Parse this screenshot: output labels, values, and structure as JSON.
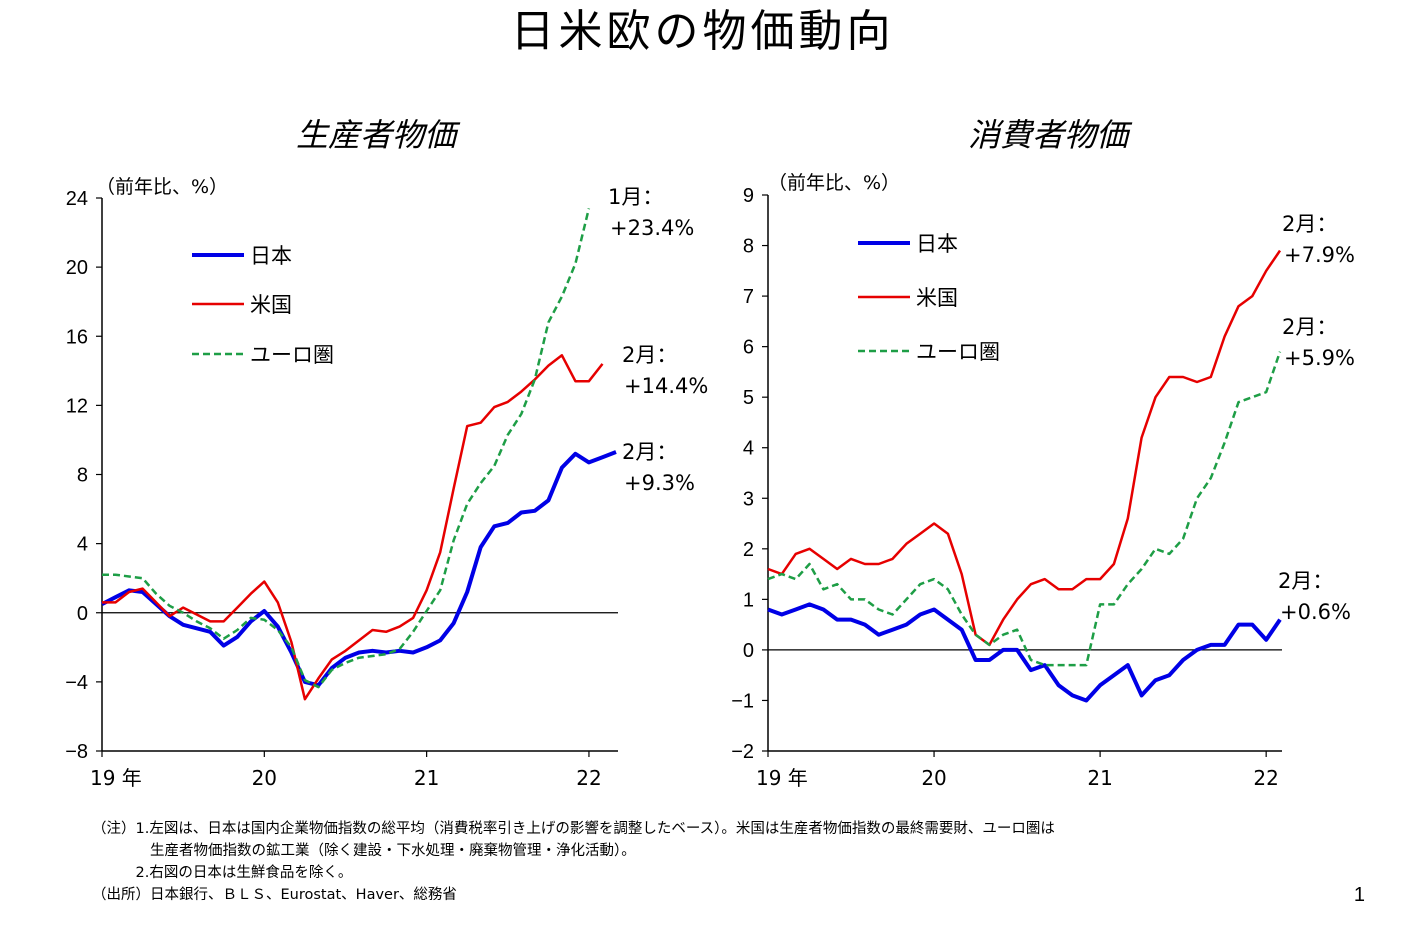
{
  "page": {
    "title": "日米欧の物価動向",
    "page_number": "1"
  },
  "notes": [
    "（注）1.左図は、日本は国内企業物価指数の総平均（消費税率引き上げの影響を調整したベース）。米国は生産者物価指数の最終需要財、ユーロ圏は",
    "　　　　生産者物価指数の鉱工業（除く建設・下水処理・廃棄物管理・浄化活動）。",
    "　　　2.右図の日本は生鮮食品を除く。",
    "（出所）日本銀行、ＢＬＳ、Eurostat、Haver、総務省"
  ],
  "colors": {
    "japan": "#0000e6",
    "us": "#e60000",
    "euro": "#1e9e46"
  },
  "chart_data": [
    {
      "type": "line",
      "title": "生産者物価",
      "ylabel": "（前年比、%）",
      "ylim": [
        -8,
        24
      ],
      "yticks": [
        -8,
        -4,
        0,
        4,
        8,
        12,
        16,
        20,
        24
      ],
      "xlim": [
        0,
        38
      ],
      "xticks": [
        {
          "pos": 0,
          "label": "19 年"
        },
        {
          "pos": 12,
          "label": "20"
        },
        {
          "pos": 24,
          "label": "21"
        },
        {
          "pos": 36,
          "label": "22"
        }
      ],
      "series": [
        {
          "name": "日本",
          "style": "solid-thick",
          "color": "#0000e6",
          "x0": 0,
          "values": [
            0.5,
            0.9,
            1.3,
            1.2,
            0.5,
            -0.2,
            -0.7,
            -0.9,
            -1.1,
            -1.9,
            -1.4,
            -0.5,
            0.1,
            -0.8,
            -2.3,
            -4.0,
            -4.2,
            -3.2,
            -2.6,
            -2.3,
            -2.2,
            -2.3,
            -2.2,
            -2.3,
            -2.0,
            -1.6,
            -0.6,
            1.2,
            3.8,
            5.0,
            5.2,
            5.8,
            5.9,
            6.5,
            8.4,
            9.2,
            8.7,
            9.0,
            9.3
          ]
        },
        {
          "name": "米国",
          "style": "solid",
          "color": "#e60000",
          "x0": 0,
          "values": [
            0.6,
            0.6,
            1.2,
            1.4,
            0.6,
            -0.2,
            0.3,
            -0.1,
            -0.5,
            -0.5,
            0.3,
            1.1,
            1.8,
            0.6,
            -1.7,
            -5.0,
            -3.8,
            -2.7,
            -2.2,
            -1.6,
            -1.0,
            -1.1,
            -0.8,
            -0.3,
            1.3,
            3.5,
            7.2,
            10.8,
            11.0,
            11.9,
            12.2,
            12.8,
            13.5,
            14.3,
            14.9,
            13.4,
            13.4,
            14.4
          ]
        },
        {
          "name": "ユーロ圏",
          "style": "dashed",
          "color": "#1e9e46",
          "x0": 0,
          "values": [
            2.2,
            2.2,
            2.1,
            2.0,
            1.1,
            0.4,
            0.0,
            -0.5,
            -0.9,
            -1.5,
            -1.0,
            -0.3,
            -0.4,
            -1.0,
            -2.0,
            -3.9,
            -4.3,
            -3.3,
            -2.9,
            -2.6,
            -2.5,
            -2.4,
            -2.1,
            -1.1,
            0.1,
            1.3,
            4.2,
            6.3,
            7.5,
            8.5,
            10.3,
            11.5,
            13.5,
            16.8,
            18.3,
            20.2,
            23.4
          ]
        }
      ],
      "legend": {
        "placement": "top-left",
        "entries": [
          "日本",
          "米国",
          "ユーロ圏"
        ]
      },
      "annotations": [
        {
          "line1": "1月：",
          "line2": "+23.4%",
          "series": "ユーロ圏"
        },
        {
          "line1": "2月：",
          "line2": "+14.4%",
          "series": "米国"
        },
        {
          "line1": "2月：",
          "line2": "+9.3%",
          "series": "日本"
        }
      ]
    },
    {
      "type": "line",
      "title": "消費者物価",
      "ylabel": "（前年比、%）",
      "ylim": [
        -2,
        9
      ],
      "yticks": [
        -2,
        -1,
        0,
        1,
        2,
        3,
        4,
        5,
        6,
        7,
        8,
        9
      ],
      "xlim": [
        0,
        37
      ],
      "xticks": [
        {
          "pos": 0,
          "label": "19 年"
        },
        {
          "pos": 12,
          "label": "20"
        },
        {
          "pos": 24,
          "label": "21"
        },
        {
          "pos": 36,
          "label": "22"
        }
      ],
      "series": [
        {
          "name": "日本",
          "style": "solid-thick",
          "color": "#0000e6",
          "x0": 0,
          "values": [
            0.8,
            0.7,
            0.8,
            0.9,
            0.8,
            0.6,
            0.6,
            0.5,
            0.3,
            0.4,
            0.5,
            0.7,
            0.8,
            0.6,
            0.4,
            -0.2,
            -0.2,
            0.0,
            0.0,
            -0.4,
            -0.3,
            -0.7,
            -0.9,
            -1.0,
            -0.7,
            -0.5,
            -0.3,
            -0.9,
            -0.6,
            -0.5,
            -0.2,
            0.0,
            0.1,
            0.1,
            0.5,
            0.5,
            0.2,
            0.6
          ]
        },
        {
          "name": "米国",
          "style": "solid",
          "color": "#e60000",
          "x0": 0,
          "values": [
            1.6,
            1.5,
            1.9,
            2.0,
            1.8,
            1.6,
            1.8,
            1.7,
            1.7,
            1.8,
            2.1,
            2.3,
            2.5,
            2.3,
            1.5,
            0.3,
            0.1,
            0.6,
            1.0,
            1.3,
            1.4,
            1.2,
            1.2,
            1.4,
            1.4,
            1.7,
            2.6,
            4.2,
            5.0,
            5.4,
            5.4,
            5.3,
            5.4,
            6.2,
            6.8,
            7.0,
            7.5,
            7.9
          ]
        },
        {
          "name": "ユーロ圏",
          "style": "dashed",
          "color": "#1e9e46",
          "x0": 0,
          "values": [
            1.4,
            1.5,
            1.4,
            1.7,
            1.2,
            1.3,
            1.0,
            1.0,
            0.8,
            0.7,
            1.0,
            1.3,
            1.4,
            1.2,
            0.7,
            0.3,
            0.1,
            0.3,
            0.4,
            -0.2,
            -0.3,
            -0.3,
            -0.3,
            -0.3,
            0.9,
            0.9,
            1.3,
            1.6,
            2.0,
            1.9,
            2.2,
            3.0,
            3.4,
            4.1,
            4.9,
            5.0,
            5.1,
            5.9
          ]
        }
      ],
      "legend": {
        "placement": "top-left",
        "entries": [
          "日本",
          "米国",
          "ユーロ圏"
        ]
      },
      "annotations": [
        {
          "line1": "2月：",
          "line2": "+7.9%",
          "series": "米国"
        },
        {
          "line1": "2月：",
          "line2": "+5.9%",
          "series": "ユーロ圏"
        },
        {
          "line1": "2月：",
          "line2": "+0.6%",
          "series": "日本"
        }
      ]
    }
  ]
}
